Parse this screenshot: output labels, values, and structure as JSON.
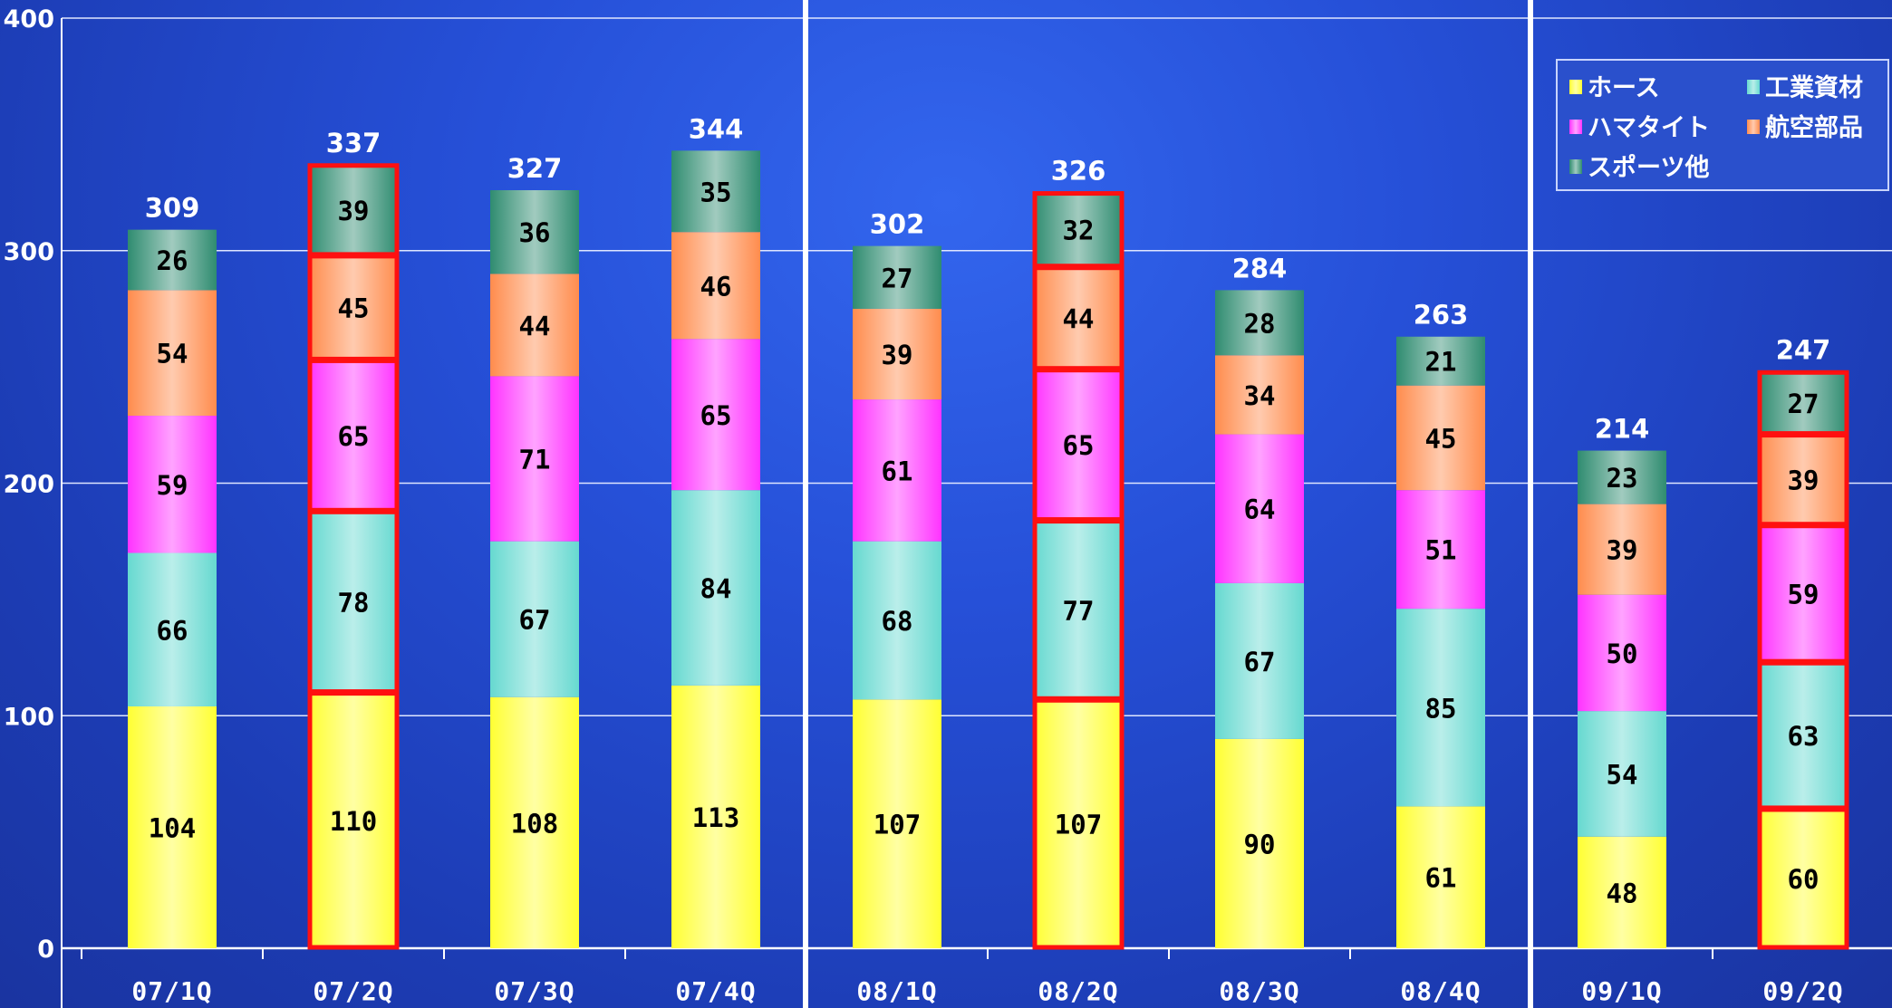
{
  "chart_data": {
    "type": "bar",
    "stacked": true,
    "categories": [
      "07/1Q",
      "07/2Q",
      "07/3Q",
      "07/4Q",
      "08/1Q",
      "08/2Q",
      "08/3Q",
      "08/4Q",
      "09/1Q",
      "09/2Q"
    ],
    "series": [
      {
        "name": "ホース",
        "color": "#ffff33",
        "values": [
          104,
          110,
          108,
          113,
          107,
          107,
          90,
          61,
          48,
          60
        ]
      },
      {
        "name": "工業資材",
        "color": "#66d9d0",
        "values": [
          66,
          78,
          67,
          84,
          68,
          77,
          67,
          85,
          54,
          63
        ]
      },
      {
        "name": "ハマタイト",
        "color": "#ff33ff",
        "values": [
          59,
          65,
          71,
          65,
          61,
          65,
          64,
          51,
          50,
          59
        ]
      },
      {
        "name": "航空部品",
        "color": "#ff8c4d",
        "values": [
          54,
          45,
          44,
          46,
          39,
          44,
          34,
          45,
          39,
          39
        ]
      },
      {
        "name": "スポーツ他",
        "color": "#2f8c70",
        "values": [
          26,
          39,
          36,
          35,
          27,
          32,
          28,
          21,
          23,
          27
        ]
      }
    ],
    "totals": [
      309,
      337,
      327,
      344,
      302,
      326,
      284,
      263,
      214,
      247
    ],
    "highlighted_categories": [
      "07/2Q",
      "08/2Q",
      "09/2Q"
    ],
    "ylim": [
      0,
      400
    ],
    "yticks": [
      0,
      100,
      200,
      300,
      400
    ],
    "grid": true,
    "year_dividers_after": [
      "07/4Q",
      "08/4Q"
    ],
    "legend_position": "top-right"
  }
}
